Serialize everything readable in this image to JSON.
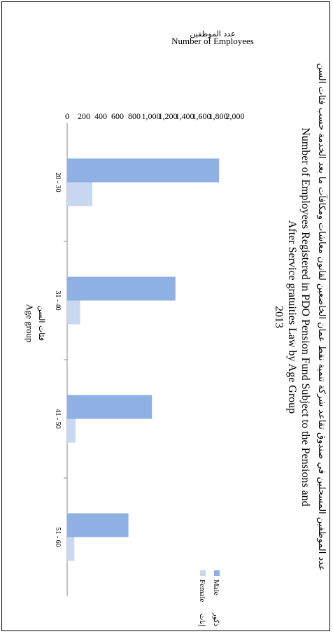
{
  "chart_data": {
    "type": "bar",
    "orientation": "rotated-90-clockwise",
    "title_ar": "عدد الموظفين المسجلين في صندوق تقاعد شركة تنمية نفط عمان الخاضعين لقانون معاشات ومكافآت ما بعد الخدمة حسب فئات السن",
    "title_en_1": "Number of Employees Registered in PDO Pension Fund Subject to the Pensions and",
    "title_en_2": "After Service gratuities Law by Age Group",
    "title_year": "2013",
    "ylabel_ar": "عدد الموظفين",
    "ylabel_en": "Number of Employees",
    "xlabel_ar": "فئات السن",
    "xlabel_en": "Age group",
    "categories": [
      "20 - 30",
      "31 - 40",
      "41 - 50",
      "51 - 60"
    ],
    "series": [
      {
        "name": "Male",
        "name_ar": "ذكور",
        "color": "#8eb0e3",
        "values": [
          1810,
          1290,
          1010,
          730
        ]
      },
      {
        "name": "Female",
        "name_ar": "إناث",
        "color": "#c9d8f1",
        "values": [
          300,
          155,
          100,
          85
        ]
      }
    ],
    "ylim": [
      0,
      2000
    ],
    "yticks": [
      "0",
      "200",
      "400",
      "600",
      "800",
      "1,000",
      "1,200",
      "1,400",
      "1,600",
      "1,800",
      "2,000"
    ],
    "grid": false,
    "legend_position": "right"
  }
}
